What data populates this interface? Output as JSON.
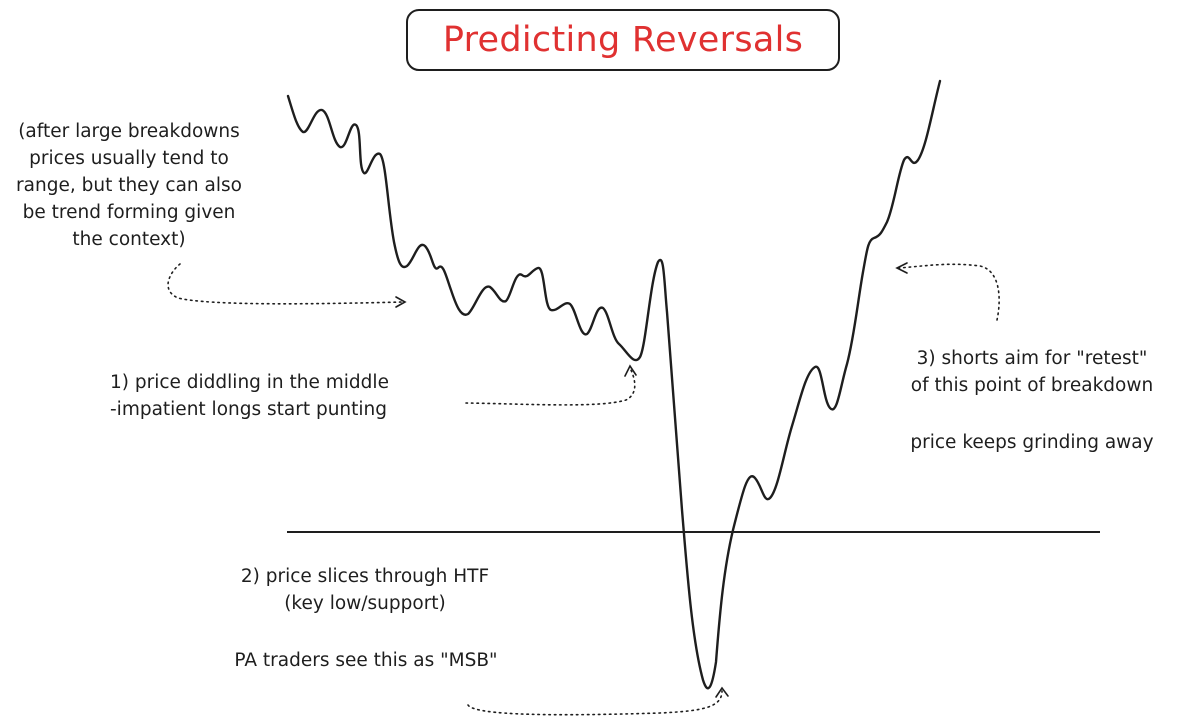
{
  "title": "Predicting Reversals",
  "annotations": {
    "breakdown_note": "(after large breakdowns\nprices usually tend to\nrange, but they can also\nbe trend forming given\nthe context)",
    "step1": "1) price diddling in the middle\n-impatient longs start punting",
    "step2_line1": "2) price slices through HTF",
    "step2_line2": "(key low/support)",
    "step2_note": "PA traders see this as \"MSB\"",
    "step3": "3) shorts aim for \"retest\"\nof this point of breakdown",
    "step3_note": "price keeps grinding away"
  },
  "colors": {
    "title": "#e03131",
    "ink": "#1e1e1e"
  }
}
